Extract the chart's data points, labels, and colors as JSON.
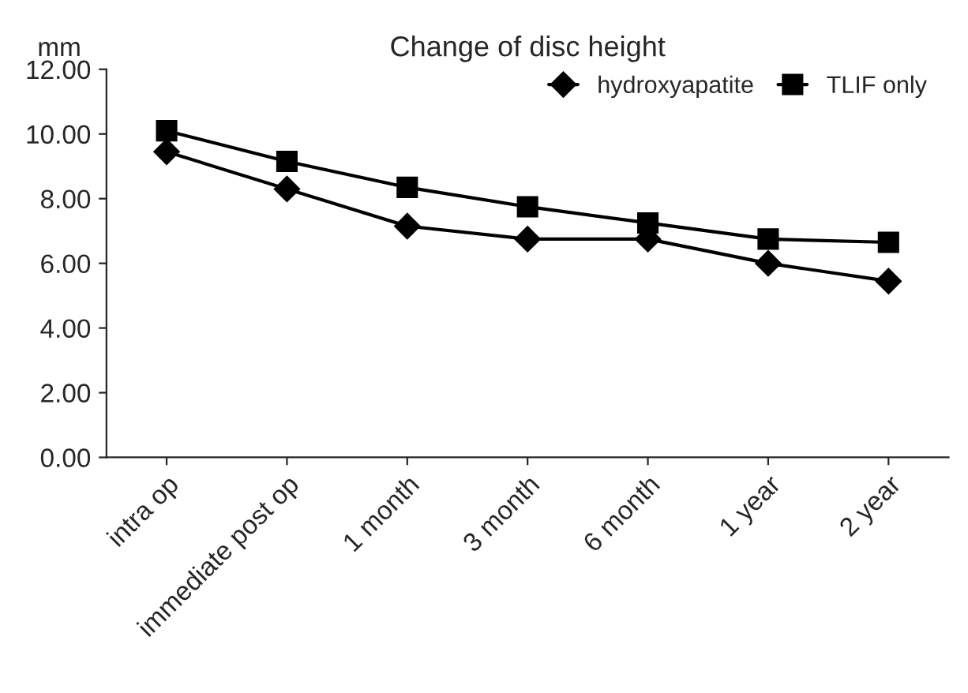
{
  "chart_data": {
    "type": "line",
    "title": "Change of disc height",
    "ylabel": "mm",
    "categories": [
      "intra op",
      "immediate post op",
      "1 month",
      "3 month",
      "6 month",
      "1 year",
      "2 year"
    ],
    "series": [
      {
        "name": "hydroxyapatite",
        "color": "#000000",
        "marker": "diamond",
        "values": [
          9.45,
          8.3,
          7.15,
          6.75,
          6.75,
          6.0,
          5.45
        ]
      },
      {
        "name": "TLIF only",
        "color": "#000000",
        "marker": "square",
        "values": [
          10.1,
          9.15,
          8.35,
          7.75,
          7.25,
          6.75,
          6.65
        ]
      }
    ],
    "ylim": [
      0,
      12
    ],
    "yticks": [
      {
        "value": 0,
        "label": "0.00"
      },
      {
        "value": 2,
        "label": "2.00"
      },
      {
        "value": 4,
        "label": "4.00"
      },
      {
        "value": 6,
        "label": "6.00"
      },
      {
        "value": 8,
        "label": "8.00"
      },
      {
        "value": 10,
        "label": "10.00"
      },
      {
        "value": 12,
        "label": "12.00"
      }
    ],
    "grid": false,
    "legend": "top right",
    "line_style": "solid"
  }
}
